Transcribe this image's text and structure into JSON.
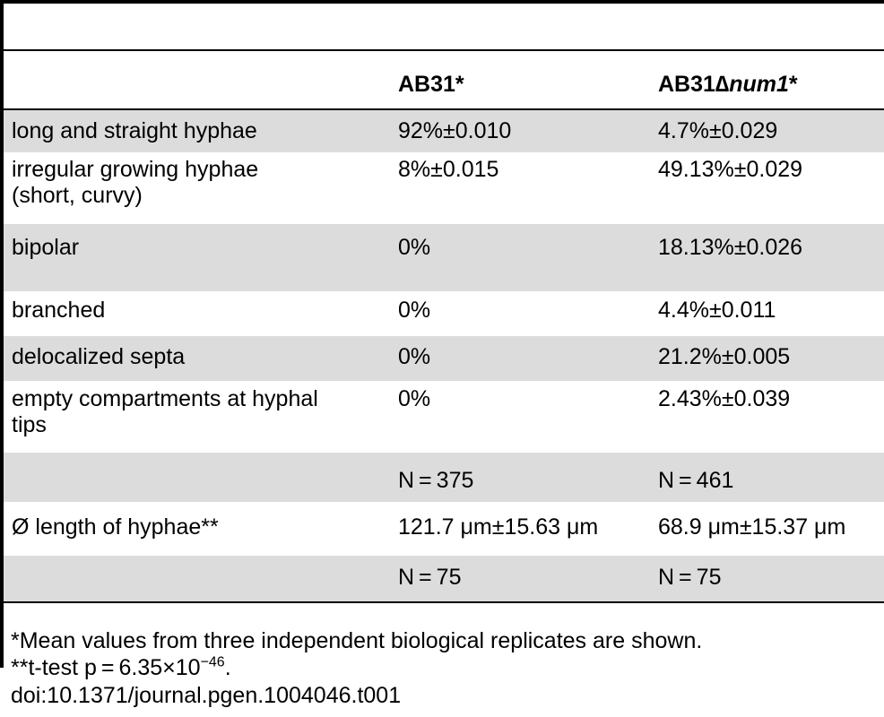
{
  "table": {
    "headers": [
      "",
      "AB31*",
      "AB31∆num1*"
    ],
    "header_parts": {
      "col2": "AB31*",
      "col3_prefix": "AB31",
      "col3_italic": "∆num1",
      "col3_suffix": "*"
    },
    "rows": [
      {
        "label_line1": "long and straight hyphae",
        "label_line2": "",
        "ab31": "92%±0.010",
        "ab31_num1": "4.7%±0.029",
        "shaded": true
      },
      {
        "label_line1": "irregular growing hyphae",
        "label_line2": "(short, curvy)",
        "ab31": "8%±0.015",
        "ab31_num1": "49.13%±0.029",
        "shaded": false
      },
      {
        "label_line1": "bipolar",
        "label_line2": "",
        "ab31": "0%",
        "ab31_num1": "18.13%±0.026",
        "shaded": true
      },
      {
        "label_line1": "branched",
        "label_line2": "",
        "ab31": "0%",
        "ab31_num1": "4.4%±0.011",
        "shaded": false
      },
      {
        "label_line1": "delocalized septa",
        "label_line2": "",
        "ab31": "0%",
        "ab31_num1": "21.2%±0.005",
        "shaded": true
      },
      {
        "label_line1": "empty compartments at hyphal",
        "label_line2": "tips",
        "ab31": "0%",
        "ab31_num1": "2.43%±0.039",
        "shaded": false
      },
      {
        "label_line1": "",
        "label_line2": "",
        "ab31": "N = 375",
        "ab31_num1": "N = 461",
        "shaded": true
      },
      {
        "label_line1": "Ø length of hyphae**",
        "label_line2": "",
        "ab31": "121.7 μm±15.63 μm",
        "ab31_num1": "68.9 μm±15.37 μm",
        "shaded": false
      },
      {
        "label_line1": "",
        "label_line2": "",
        "ab31": "N = 75",
        "ab31_num1": "N = 75",
        "shaded": true
      }
    ]
  },
  "footnotes": {
    "mean": "*Mean values from three independent biological replicates are shown.",
    "ttest_prefix": "**t-test p = 6.35×10",
    "ttest_exponent": "−46",
    "ttest_suffix": ".",
    "doi": "doi:10.1371/journal.pgen.1004046.t001"
  }
}
